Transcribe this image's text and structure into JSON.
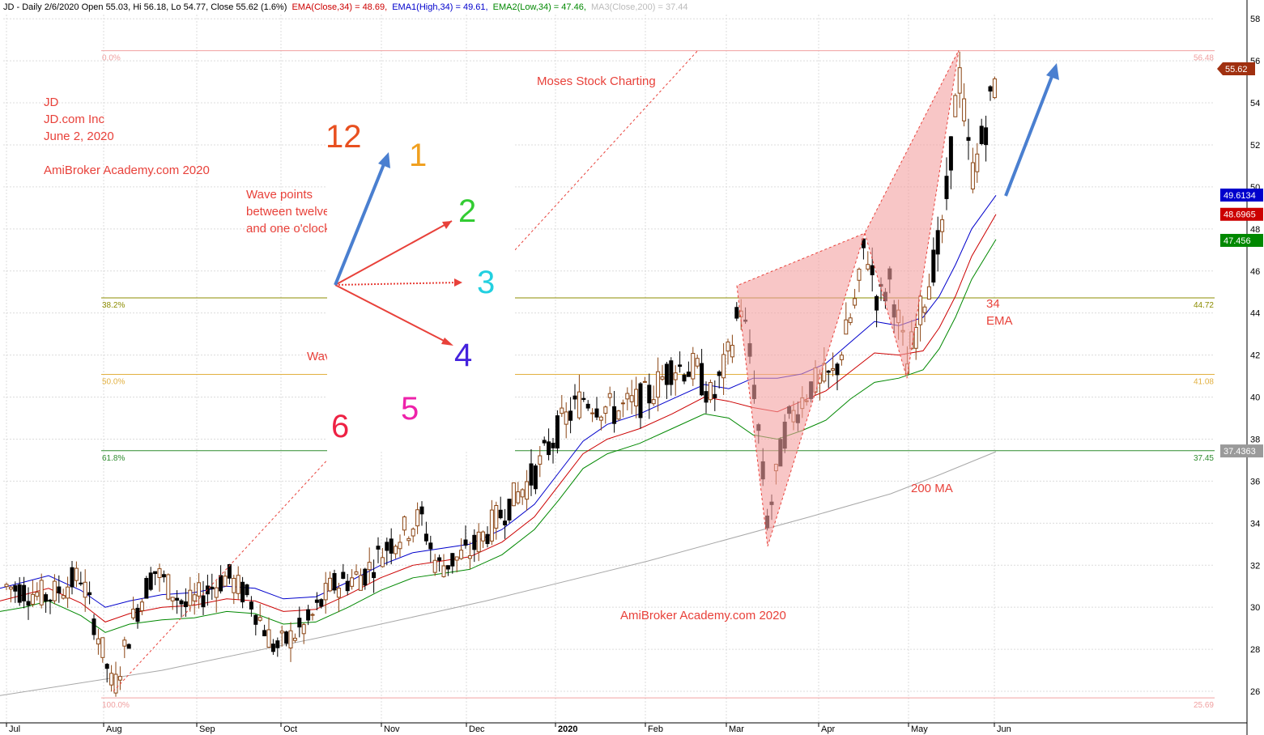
{
  "header": {
    "line": "JD - Daily 2/6/2020 Open 55.03, Hi 56.18, Lo 54.77, Close 55.62 (1.6%)",
    "ema": "EMA(Close,34) = 48.69,",
    "ema1": "EMA1(High,34) = 49.61,",
    "ema2": "EMA2(Low,34) = 47.46,",
    "ma3": "MA3(Close,200) = 37.44"
  },
  "colors": {
    "ema": "#cc0000",
    "ema1": "#0000cc",
    "ema2": "#008800",
    "ma200": "#a8a8a8",
    "fib_line": "#8c8c00",
    "fib_50": "#e2b040",
    "fib_618": "#2e8b2e",
    "fib_edge": "#f0a0a0",
    "annotation": "#e8413a",
    "pattern_fill": "#f4a0a0",
    "up_candle": "#8b4513",
    "down_candle": "#000000",
    "arrow_blue": "#4a7fd0"
  },
  "annotations": {
    "ticker": "JD",
    "company": "JD.com Inc",
    "date": "June 2, 2020",
    "site": "AmiBroker Academy.com 2020",
    "wave_note_1": "Wave points",
    "wave_note_2": "between twelve",
    "wave_note_3": "and one o'clock",
    "wave_direction": "Wave Direction",
    "moses": "Moses Stock Charting",
    "ema_label_1": "34",
    "ema_label_2": "EMA",
    "ma_label": "200 MA",
    "footer_site": "AmiBroker Academy.com  2020"
  },
  "clock": {
    "numbers": [
      {
        "label": "12",
        "color": "#e85020"
      },
      {
        "label": "1",
        "color": "#f0a020"
      },
      {
        "label": "2",
        "color": "#33cc33"
      },
      {
        "label": "3",
        "color": "#22d0e0"
      },
      {
        "label": "4",
        "color": "#4422dd"
      },
      {
        "label": "5",
        "color": "#ee22aa"
      },
      {
        "label": "6",
        "color": "#ee2244"
      }
    ]
  },
  "chart_data": {
    "type": "candlestick",
    "title": "JD - Daily 2/6/2020",
    "x_labels": [
      "Jul",
      "Aug",
      "Sep",
      "Oct",
      "Nov",
      "Dec",
      "2020",
      "Feb",
      "Mar",
      "Apr",
      "May",
      "Jun"
    ],
    "y_ticks": [
      26,
      28,
      30,
      32,
      34,
      36,
      38,
      40,
      42,
      44,
      46,
      48,
      50,
      52,
      54,
      56,
      58
    ],
    "ylim": [
      25.0,
      58.2
    ],
    "last_close": 55.62,
    "price_badges": [
      {
        "label": "55.62",
        "value": 55.62,
        "color": "#a03010"
      },
      {
        "label": "49.6134",
        "value": 49.6134,
        "color": "#0000cc"
      },
      {
        "label": "48.6965",
        "value": 48.6965,
        "color": "#cc0000"
      },
      {
        "label": "47.456",
        "value": 47.456,
        "color": "#008800"
      },
      {
        "label": "37.4363",
        "value": 37.4363,
        "color": "#9a9a9a"
      }
    ],
    "fib_levels": [
      {
        "pct": "0.0%",
        "price": "56.48",
        "value": 56.48
      },
      {
        "pct": "38.2%",
        "price": "44.72",
        "value": 44.72
      },
      {
        "pct": "50.0%",
        "price": "41.08",
        "value": 41.08
      },
      {
        "pct": "61.8%",
        "price": "37.45",
        "value": 37.45
      },
      {
        "pct": "100.0%",
        "price": "25.69",
        "value": 25.69
      }
    ],
    "series": [
      {
        "name": "EMA(Close,34)",
        "values": [
          [
            0,
            30.3
          ],
          [
            30,
            30.6
          ],
          [
            60,
            30.9
          ],
          [
            100,
            30.2
          ],
          [
            130,
            29.3
          ],
          [
            160,
            29.7
          ],
          [
            200,
            30.0
          ],
          [
            240,
            30.1
          ],
          [
            280,
            30.4
          ],
          [
            315,
            30.3
          ],
          [
            350,
            29.8
          ],
          [
            390,
            29.9
          ],
          [
            430,
            30.6
          ],
          [
            470,
            31.4
          ],
          [
            510,
            32.0
          ],
          [
            545,
            32.2
          ],
          [
            580,
            32.4
          ],
          [
            620,
            33.1
          ],
          [
            660,
            34.3
          ],
          [
            690,
            35.8
          ],
          [
            720,
            37.3
          ],
          [
            750,
            38.0
          ],
          [
            790,
            38.5
          ],
          [
            830,
            39.2
          ],
          [
            870,
            40.0
          ],
          [
            900,
            39.8
          ],
          [
            930,
            39.5
          ],
          [
            960,
            39.3
          ],
          [
            990,
            39.8
          ],
          [
            1020,
            40.3
          ],
          [
            1050,
            41.2
          ],
          [
            1080,
            42.1
          ],
          [
            1110,
            42.0
          ],
          [
            1140,
            42.2
          ],
          [
            1160,
            43.3
          ],
          [
            1180,
            44.8
          ],
          [
            1200,
            46.7
          ],
          [
            1230,
            48.7
          ]
        ]
      },
      {
        "name": "EMA1(High,34)",
        "values": [
          [
            0,
            30.9
          ],
          [
            30,
            31.2
          ],
          [
            60,
            31.5
          ],
          [
            100,
            30.8
          ],
          [
            130,
            30.0
          ],
          [
            160,
            30.3
          ],
          [
            200,
            30.6
          ],
          [
            240,
            30.7
          ],
          [
            280,
            31.0
          ],
          [
            315,
            30.9
          ],
          [
            350,
            30.4
          ],
          [
            390,
            30.5
          ],
          [
            430,
            31.2
          ],
          [
            470,
            32.0
          ],
          [
            510,
            32.6
          ],
          [
            545,
            32.8
          ],
          [
            580,
            33.0
          ],
          [
            620,
            33.7
          ],
          [
            660,
            34.9
          ],
          [
            690,
            36.4
          ],
          [
            720,
            37.9
          ],
          [
            750,
            38.7
          ],
          [
            790,
            39.2
          ],
          [
            830,
            39.9
          ],
          [
            870,
            40.6
          ],
          [
            900,
            40.4
          ],
          [
            930,
            40.9
          ],
          [
            960,
            40.9
          ],
          [
            990,
            41.1
          ],
          [
            1020,
            41.6
          ],
          [
            1050,
            42.6
          ],
          [
            1080,
            43.6
          ],
          [
            1110,
            43.4
          ],
          [
            1140,
            43.8
          ],
          [
            1160,
            44.8
          ],
          [
            1180,
            46.3
          ],
          [
            1200,
            48.0
          ],
          [
            1230,
            49.6
          ]
        ]
      },
      {
        "name": "EMA2(Low,34)",
        "values": [
          [
            0,
            29.8
          ],
          [
            30,
            30.0
          ],
          [
            60,
            30.3
          ],
          [
            100,
            29.6
          ],
          [
            130,
            28.8
          ],
          [
            160,
            29.2
          ],
          [
            200,
            29.4
          ],
          [
            240,
            29.5
          ],
          [
            280,
            29.8
          ],
          [
            315,
            29.7
          ],
          [
            350,
            29.2
          ],
          [
            390,
            29.3
          ],
          [
            430,
            30.0
          ],
          [
            470,
            30.8
          ],
          [
            510,
            31.4
          ],
          [
            545,
            31.6
          ],
          [
            580,
            31.8
          ],
          [
            620,
            32.5
          ],
          [
            660,
            33.7
          ],
          [
            690,
            35.1
          ],
          [
            720,
            36.6
          ],
          [
            750,
            37.3
          ],
          [
            790,
            37.8
          ],
          [
            830,
            38.5
          ],
          [
            870,
            39.2
          ],
          [
            900,
            39.0
          ],
          [
            930,
            38.2
          ],
          [
            960,
            38.0
          ],
          [
            990,
            38.4
          ],
          [
            1020,
            38.9
          ],
          [
            1050,
            39.9
          ],
          [
            1080,
            40.7
          ],
          [
            1110,
            40.9
          ],
          [
            1140,
            41.3
          ],
          [
            1160,
            42.3
          ],
          [
            1180,
            43.8
          ],
          [
            1200,
            45.6
          ],
          [
            1230,
            47.5
          ]
        ]
      },
      {
        "name": "MA3(Close,200)",
        "values": [
          [
            0,
            25.8
          ],
          [
            200,
            27.0
          ],
          [
            400,
            28.6
          ],
          [
            600,
            30.3
          ],
          [
            800,
            32.2
          ],
          [
            1000,
            34.3
          ],
          [
            1100,
            35.4
          ],
          [
            1160,
            36.3
          ],
          [
            1230,
            37.4
          ]
        ]
      }
    ],
    "pattern_points": [
      [
        910,
        45.3
      ],
      [
        948,
        32.9
      ],
      [
        1068,
        47.8
      ],
      [
        1120,
        40.9
      ],
      [
        1184,
        56.5
      ]
    ]
  }
}
